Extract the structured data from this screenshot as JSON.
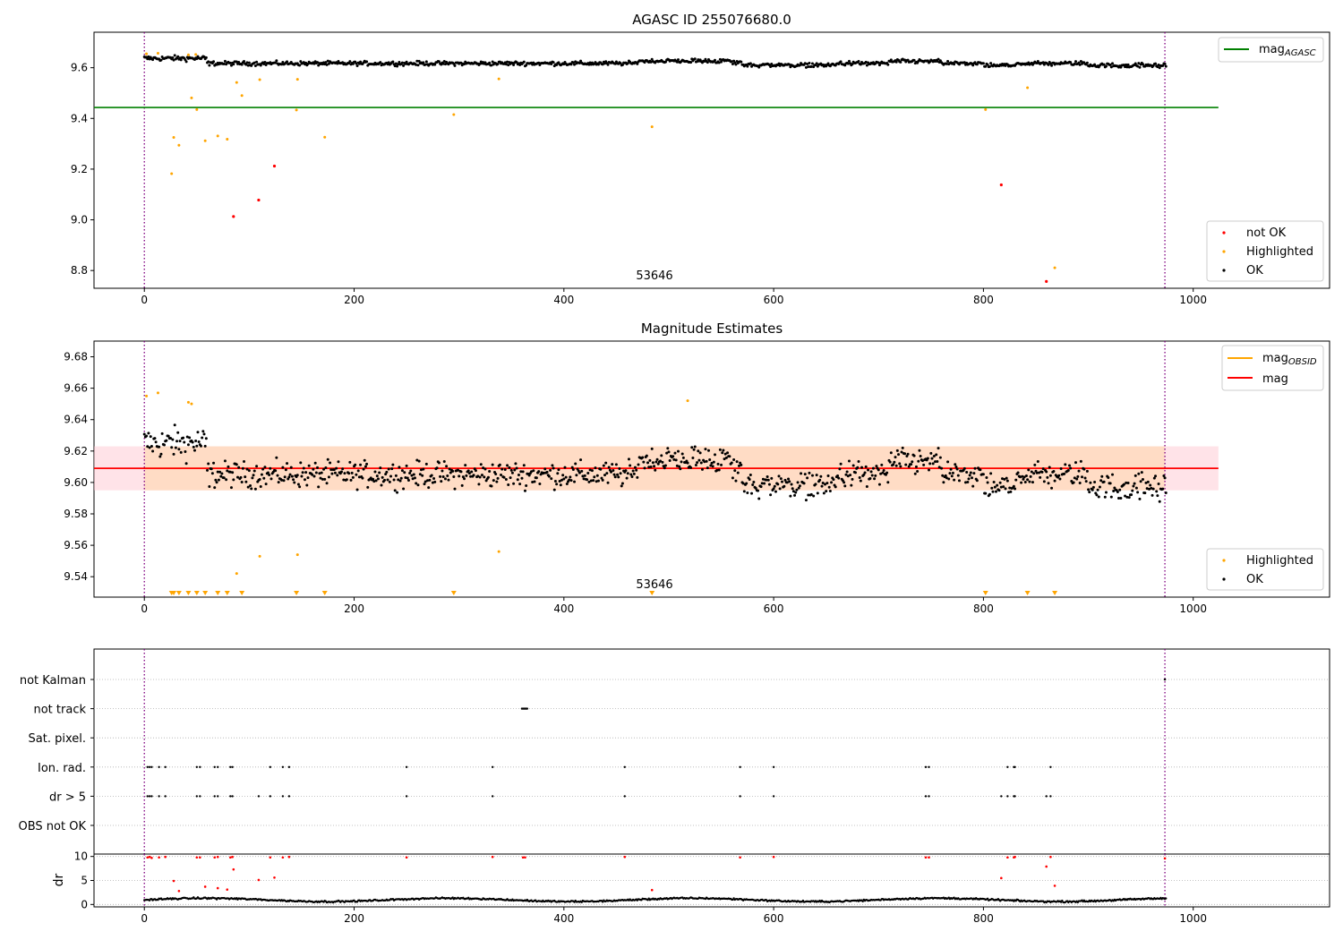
{
  "chart_data": [
    {
      "type": "scatter",
      "title": "AGASC ID 255076680.0",
      "xlim": [
        -48,
        1130
      ],
      "ylim": [
        8.73,
        9.74
      ],
      "x_ticks": [
        0,
        200,
        400,
        600,
        800,
        1000
      ],
      "y_ticks": [
        8.8,
        9.0,
        9.2,
        9.4,
        9.6
      ],
      "y_tick_labels": [
        "8.8",
        "9.0",
        "9.2",
        "9.4",
        "9.6"
      ],
      "obsid_lines_x": [
        0,
        973
      ],
      "obsid_label": "53646",
      "obsid_label_x": 487,
      "reference_line": {
        "name": "mag_AGASC",
        "label_main": "mag",
        "label_sub": "AGASC",
        "y": 9.443,
        "x_range": [
          -48,
          1024
        ],
        "color": "#008000"
      },
      "ok_series": {
        "name": "OK",
        "color": "#000000",
        "n_points": 975,
        "base": 9.605,
        "noise": 0.012,
        "segment_shifts": [
          {
            "x": [
              0,
              60
            ],
            "dy": 0.025
          },
          {
            "x": [
              470,
              570
            ],
            "dy": 0.012
          },
          {
            "x": [
              560,
              660
            ],
            "dy": -0.008
          },
          {
            "x": [
              710,
              760
            ],
            "dy": 0.01
          },
          {
            "x": [
              800,
              830
            ],
            "dy": -0.01
          },
          {
            "x": [
              900,
              975
            ],
            "dy": -0.01
          }
        ]
      },
      "highlighted_points": {
        "name": "Highlighted",
        "color": "#ffa500",
        "x": [
          2,
          13,
          26,
          28,
          33,
          42,
          45,
          49,
          50,
          58,
          70,
          79,
          88,
          93,
          110,
          145,
          146,
          172,
          295,
          338,
          484,
          802,
          842,
          868
        ],
        "y": [
          9.655,
          9.657,
          9.182,
          9.325,
          9.294,
          9.651,
          9.481,
          9.652,
          9.435,
          9.312,
          9.331,
          9.318,
          9.542,
          9.49,
          9.553,
          9.433,
          9.554,
          9.326,
          9.415,
          9.556,
          9.367,
          9.435,
          9.521,
          8.811
        ]
      },
      "not_ok_points": {
        "name": "not OK",
        "color": "#ff0000",
        "x": [
          85,
          109,
          124,
          817,
          860
        ],
        "y": [
          9.013,
          9.078,
          9.212,
          9.138,
          8.757
        ]
      },
      "legend_line": {
        "entries": [
          "mag_AGASC"
        ],
        "position": "upper right"
      },
      "legend_points": {
        "entries": [
          "not OK",
          "Highlighted",
          "OK"
        ],
        "position": "lower right"
      }
    },
    {
      "type": "scatter",
      "title": "Magnitude Estimates",
      "xlim": [
        -48,
        1130
      ],
      "ylim": [
        9.527,
        9.69
      ],
      "x_ticks": [
        0,
        200,
        400,
        600,
        800,
        1000
      ],
      "y_ticks": [
        9.54,
        9.56,
        9.58,
        9.6,
        9.62,
        9.64,
        9.66,
        9.68
      ],
      "y_tick_labels": [
        "9.54",
        "9.56",
        "9.58",
        "9.60",
        "9.62",
        "9.64",
        "9.66",
        "9.68"
      ],
      "obsid_lines_x": [
        0,
        973
      ],
      "obsid_label": "53646",
      "obsid_label_x": 487,
      "mag_line": {
        "name": "mag",
        "y": 9.609,
        "x_range": [
          -48,
          1024
        ],
        "color": "#ff0000"
      },
      "mag_obsid_line": {
        "name": "mag_OBSID",
        "label_main": "mag",
        "label_sub": "OBSID",
        "y": 9.609,
        "x_range": [
          0,
          973
        ],
        "color": "#ffa500"
      },
      "band_outer": {
        "y": [
          9.595,
          9.623
        ],
        "x_range": [
          -48,
          1024
        ],
        "color": "#ffc0cb"
      },
      "band_inner": {
        "y": [
          9.595,
          9.623
        ],
        "x_range": [
          0,
          973
        ],
        "color": "#ffdab9"
      },
      "highlighted_points": {
        "name": "Highlighted",
        "color": "#ffa500",
        "x": [
          2,
          13,
          42,
          45,
          88,
          110,
          146,
          338,
          518
        ],
        "y": [
          9.655,
          9.657,
          9.651,
          9.65,
          9.542,
          9.553,
          9.554,
          9.556,
          9.652
        ]
      },
      "out_of_range_markers_x": [
        26,
        28,
        33,
        42,
        50,
        58,
        70,
        79,
        93,
        145,
        172,
        295,
        484,
        802,
        842,
        868
      ],
      "legend_line": {
        "entries": [
          "mag_OBSID",
          "mag"
        ],
        "position": "upper right"
      },
      "legend_points": {
        "entries": [
          "Highlighted",
          "OK"
        ],
        "position": "lower right"
      }
    },
    {
      "type": "scatter",
      "title": "",
      "xlim": [
        -48,
        1130
      ],
      "categories": [
        "not Kalman",
        "not track",
        "Sat. pixel.",
        "Ion. rad.",
        "dr > 5",
        "OBS not OK"
      ],
      "flags": [
        {
          "category": "not Kalman",
          "x": [
            973
          ]
        },
        {
          "category": "not track",
          "x": [
            360,
            361,
            362,
            363,
            364,
            365
          ]
        },
        {
          "category": "Sat. pixel.",
          "x": []
        },
        {
          "category": "Ion. rad.",
          "x": [
            3,
            5,
            7,
            14,
            20,
            50,
            53,
            67,
            70,
            82,
            84,
            120,
            132,
            138,
            250,
            332,
            458,
            568,
            600,
            745,
            748,
            823,
            829,
            830,
            864
          ]
        },
        {
          "category": "dr > 5",
          "x": [
            3,
            5,
            7,
            14,
            20,
            50,
            53,
            67,
            70,
            82,
            84,
            109,
            120,
            132,
            138,
            250,
            332,
            458,
            568,
            600,
            745,
            748,
            817,
            823,
            829,
            830,
            860,
            864
          ]
        },
        {
          "category": "OBS not OK",
          "x": []
        }
      ],
      "obsid_lines_x": [
        0,
        973
      ]
    },
    {
      "type": "scatter",
      "ylabel": "dr",
      "xlim": [
        -48,
        1130
      ],
      "ylim": [
        -0.5,
        10.5
      ],
      "x_ticks": [
        0,
        200,
        400,
        600,
        800,
        1000
      ],
      "y_ticks": [
        0,
        5,
        10
      ],
      "y_tick_labels": [
        "0",
        "5",
        "10"
      ],
      "obsid_lines_x": [
        0,
        973
      ],
      "dr_ok": {
        "color": "#000000",
        "typical_range": [
          0.3,
          1.6
        ]
      },
      "dr_flagged": {
        "color": "#ff0000",
        "x": [
          3,
          5,
          7,
          14,
          20,
          50,
          53,
          67,
          70,
          82,
          84,
          120,
          132,
          138,
          250,
          332,
          361,
          363,
          458,
          568,
          600,
          745,
          748,
          823,
          829,
          830,
          864,
          973,
          28,
          33,
          58,
          70,
          79,
          85,
          109,
          124,
          817,
          860,
          868,
          484
        ],
        "y": [
          9.8,
          9.9,
          9.7,
          9.8,
          9.9,
          9.8,
          9.8,
          9.8,
          9.9,
          9.8,
          9.9,
          9.8,
          9.8,
          9.9,
          9.8,
          9.9,
          9.8,
          9.8,
          9.9,
          9.8,
          9.9,
          9.8,
          9.8,
          9.8,
          9.8,
          9.9,
          9.9,
          9.6,
          4.9,
          2.8,
          3.7,
          3.4,
          3.1,
          7.3,
          5.1,
          5.6,
          5.5,
          7.9,
          3.9,
          3.0
        ]
      }
    }
  ]
}
